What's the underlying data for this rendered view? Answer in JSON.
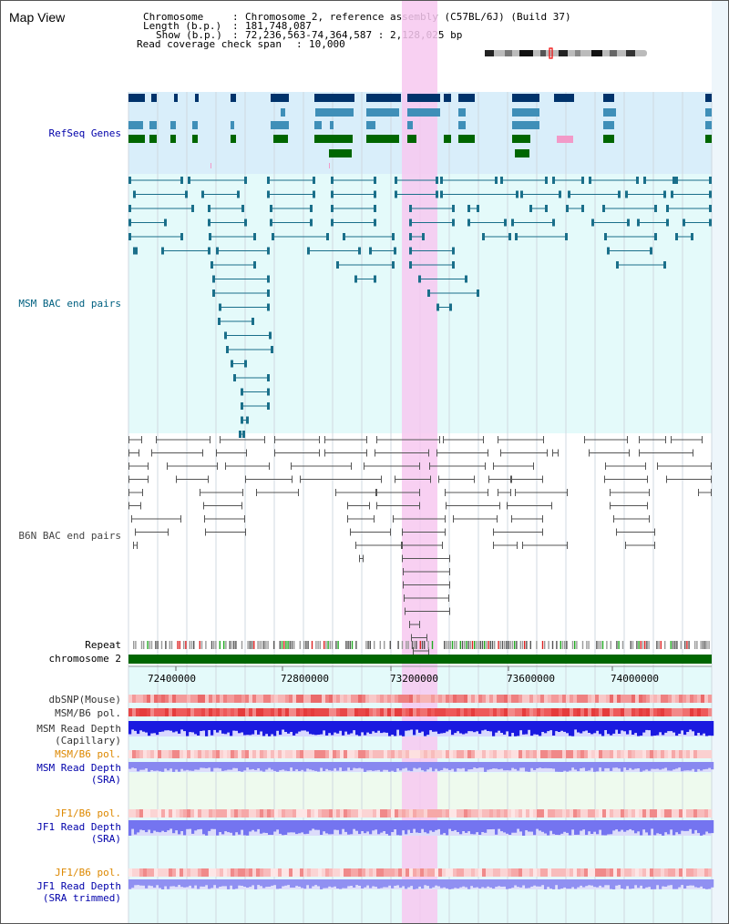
{
  "page": {
    "title": "Map View"
  },
  "info": {
    "chromosome_label": "Chromosome",
    "chromosome_value": "Chromosome 2, reference assembly (C57BL/6J) (Build 37)",
    "length_label": "Length (b.p.)",
    "length_value": "181,748,087",
    "show_label": "Show (b.p.)",
    "show_value": "72,236,563-74,364,587 : 2,128,025 bp",
    "coverage_label": "Read coverage check span",
    "coverage_value": "10,000"
  },
  "tracks": {
    "refseq": "RefSeq Genes",
    "msm_bac": "MSM BAC end pairs",
    "b6n_bac": "B6N BAC end pairs",
    "repeat": "Repeat",
    "chromosome": "chromosome 2",
    "dbsnp": "dbSNP(Mouse)",
    "msm_b6_pol_1": "MSM/B6 pol.",
    "msm_read_depth_cap_1": "MSM Read Depth",
    "msm_read_depth_cap_2": "(Capillary)",
    "msm_b6_pol_2": "MSM/B6 pol.",
    "msm_read_depth_sra_1": "MSM Read Depth",
    "msm_read_depth_sra_2": "(SRA)",
    "jf1_b6_pol_1": "JF1/B6 pol.",
    "jf1_read_depth_sra_1": "JF1 Read Depth",
    "jf1_read_depth_sra_2": "(SRA)",
    "jf1_b6_pol_2": "JF1/B6 pol.",
    "jf1_read_depth_trim_1": "JF1 Read Depth",
    "jf1_read_depth_trim_2": "(SRA trimmed)"
  },
  "axis": {
    "ticks": [
      "72400000",
      "72800000",
      "73200000",
      "73600000",
      "74000000"
    ]
  },
  "colors": {
    "refseq_bg": "#d9eefa",
    "bac_bg": "#e4fafa",
    "highlight": "#f7c8f0",
    "gene_dark": "#00336b",
    "gene_mid": "#3f8fb8",
    "gene_green": "#006600",
    "msm_line": "#1a6f8a",
    "b6n_line": "#555555",
    "chromosome_bar": "#006600",
    "label_blue": "#0000aa",
    "label_orange": "#dd8800"
  }
}
